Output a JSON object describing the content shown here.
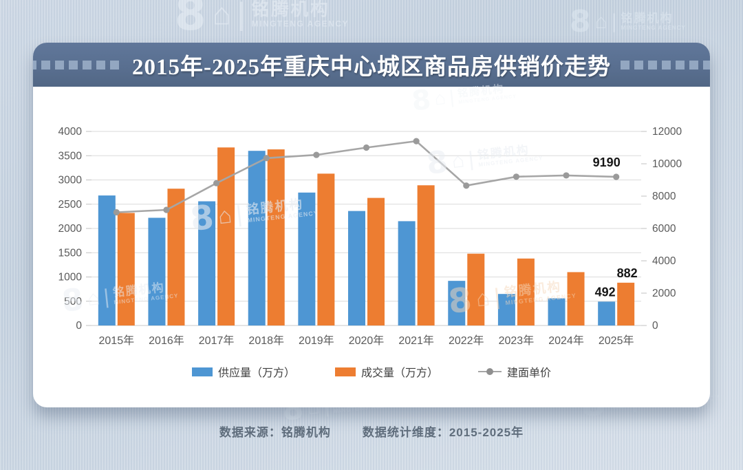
{
  "page": {
    "title": "2015年-2025年重庆中心城区商品房供销价走势",
    "footer": {
      "source_label": "数据来源：铭腾机构",
      "dimension_label": "数据统计维度：2015-2025年"
    },
    "watermark": {
      "eight": "8",
      "house": "⌂",
      "bar": "|",
      "cn": "铭腾机构",
      "en": "MINGTENG AGENCY"
    }
  },
  "colors": {
    "supply_bar": "#4e96d3",
    "transaction_bar": "#ed7d31",
    "price_line": "#a6a6a6",
    "header_band": "#596f90",
    "axis_text": "#595959",
    "gridline": "#dadada"
  },
  "chart_data": {
    "type": "bar",
    "title": "2015年-2025年重庆中心城区商品房供销价走势",
    "categories": [
      "2015年",
      "2016年",
      "2017年",
      "2018年",
      "2019年",
      "2020年",
      "2021年",
      "2022年",
      "2023年",
      "2024年",
      "2025年"
    ],
    "series": [
      {
        "name": "供应量（万方）",
        "type": "bar",
        "axis": "left",
        "color": "#4e96d3",
        "values": [
          2680,
          2220,
          2560,
          3600,
          2740,
          2360,
          2150,
          920,
          650,
          560,
          492
        ]
      },
      {
        "name": "成交量（万方）",
        "type": "bar",
        "axis": "left",
        "color": "#ed7d31",
        "values": [
          2320,
          2820,
          3670,
          3630,
          3130,
          2630,
          2890,
          1480,
          1380,
          1100,
          882
        ]
      },
      {
        "name": "建面单价",
        "type": "line",
        "axis": "right",
        "color": "#a6a6a6",
        "values": [
          7000,
          7150,
          8800,
          10350,
          10550,
          11000,
          11400,
          8650,
          9200,
          9280,
          9190
        ]
      }
    ],
    "left_axis": {
      "min": 0,
      "max": 4000,
      "step": 500,
      "ticks": [
        "0",
        "500",
        "1000",
        "1500",
        "2000",
        "2500",
        "3000",
        "3500",
        "4000"
      ]
    },
    "right_axis": {
      "min": 0,
      "max": 12000,
      "step": 2000,
      "ticks": [
        "0",
        "2000",
        "4000",
        "6000",
        "8000",
        "10000",
        "12000"
      ]
    },
    "data_labels": [
      {
        "series": 0,
        "index": 10,
        "text": "492"
      },
      {
        "series": 1,
        "index": 10,
        "text": "882"
      },
      {
        "series": 2,
        "index": 10,
        "text": "9190"
      }
    ],
    "legend": {
      "position": "bottom",
      "entries": [
        "供应量（万方）",
        "成交量（万方）",
        "建面单价"
      ]
    },
    "grid": true
  }
}
